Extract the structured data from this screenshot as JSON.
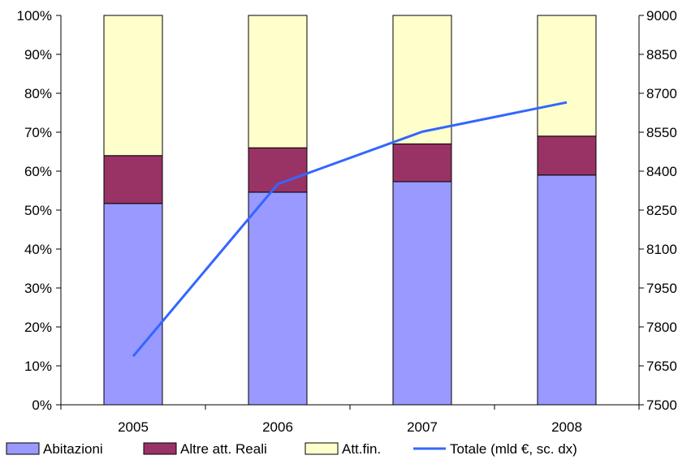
{
  "chart_data": {
    "type": "bar",
    "subtype": "stacked-100-with-line-secondary-axis",
    "categories": [
      "2005",
      "2006",
      "2007",
      "2008"
    ],
    "series": [
      {
        "name": "Abitazioni",
        "kind": "bar",
        "color": "#9999FF",
        "values": [
          51.7,
          54.6,
          57.3,
          59.0
        ]
      },
      {
        "name": "Altre att. Reali",
        "kind": "bar",
        "color": "#993366",
        "values": [
          12.3,
          11.4,
          9.7,
          10.0
        ]
      },
      {
        "name": "Att.fin.",
        "kind": "bar",
        "color": "#FFFFCC",
        "values": [
          36.0,
          34.0,
          33.0,
          31.0
        ]
      },
      {
        "name": "Totale (mld €, sc. dx)",
        "kind": "line",
        "axis": "right",
        "color": "#3366FF",
        "values": [
          7687,
          8350,
          8552,
          8665
        ]
      }
    ],
    "left_axis": {
      "ylim": [
        0,
        100
      ],
      "ticks": [
        0,
        10,
        20,
        30,
        40,
        50,
        60,
        70,
        80,
        90,
        100
      ],
      "tick_labels": [
        "0%",
        "10%",
        "20%",
        "30%",
        "40%",
        "50%",
        "60%",
        "70%",
        "80%",
        "90%",
        "100%"
      ]
    },
    "right_axis": {
      "ylim": [
        7500,
        9000
      ],
      "ticks": [
        7500,
        7650,
        7800,
        7950,
        8100,
        8250,
        8400,
        8550,
        8700,
        8850,
        9000
      ],
      "tick_labels": [
        "7500",
        "7650",
        "7800",
        "7950",
        "8100",
        "8250",
        "8400",
        "8550",
        "8700",
        "8850",
        "9000"
      ]
    },
    "grid": false,
    "legend_position": "bottom",
    "legend": [
      "Abitazioni",
      "Altre att. Reali",
      "Att.fin.",
      "Totale (mld €, sc. dx)"
    ]
  }
}
